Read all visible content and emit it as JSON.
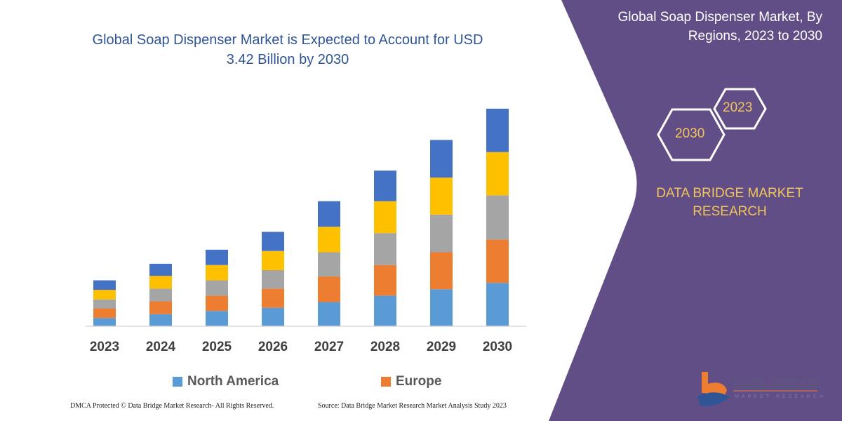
{
  "chart_data": {
    "type": "bar",
    "stacked": true,
    "title": "Global Soap Dispenser Market is Expected to Account for USD 3.42 Billion by 2030",
    "categories": [
      "2023",
      "2024",
      "2025",
      "2026",
      "2027",
      "2028",
      "2029",
      "2030"
    ],
    "series": [
      {
        "name": "North America",
        "color": "#5B9BD5",
        "values": [
          0.13,
          0.19,
          0.24,
          0.29,
          0.38,
          0.48,
          0.58,
          0.68
        ]
      },
      {
        "name": "Europe",
        "color": "#ED7D31",
        "values": [
          0.15,
          0.2,
          0.24,
          0.3,
          0.4,
          0.48,
          0.58,
          0.68
        ]
      },
      {
        "color": "#A5A5A5",
        "values": [
          0.14,
          0.2,
          0.24,
          0.29,
          0.38,
          0.5,
          0.59,
          0.69
        ]
      },
      {
        "color": "#FFC000",
        "values": [
          0.15,
          0.2,
          0.24,
          0.3,
          0.4,
          0.5,
          0.58,
          0.68
        ]
      },
      {
        "color": "#4472C4",
        "values": [
          0.15,
          0.19,
          0.24,
          0.3,
          0.4,
          0.48,
          0.59,
          0.68
        ]
      }
    ],
    "ylim": [
      0,
      3.42
    ],
    "xlabel": "",
    "ylabel": "",
    "grid": false,
    "legend": "bottom"
  },
  "side": {
    "title_line1": "Global Soap Dispenser Market, By",
    "title_line2": "Regions, 2023 to 2030",
    "hex_small": "2023",
    "hex_large": "2030",
    "brand_line1": "DATA BRIDGE MARKET",
    "brand_line2": "RESEARCH",
    "logo_text": "DATA BRIDGE MARKET RESEARCH",
    "panel_color": "#624E86"
  },
  "title_line1": "Global Soap Dispenser Market is Expected to Account for USD",
  "title_line2": "3.42 Billion by 2030",
  "footer": {
    "left": "DMCA Protected © Data Bridge Market Research-  All Rights Reserved.",
    "right": "Source: Data Bridge Market Research  Market Analysis Study 2023"
  }
}
